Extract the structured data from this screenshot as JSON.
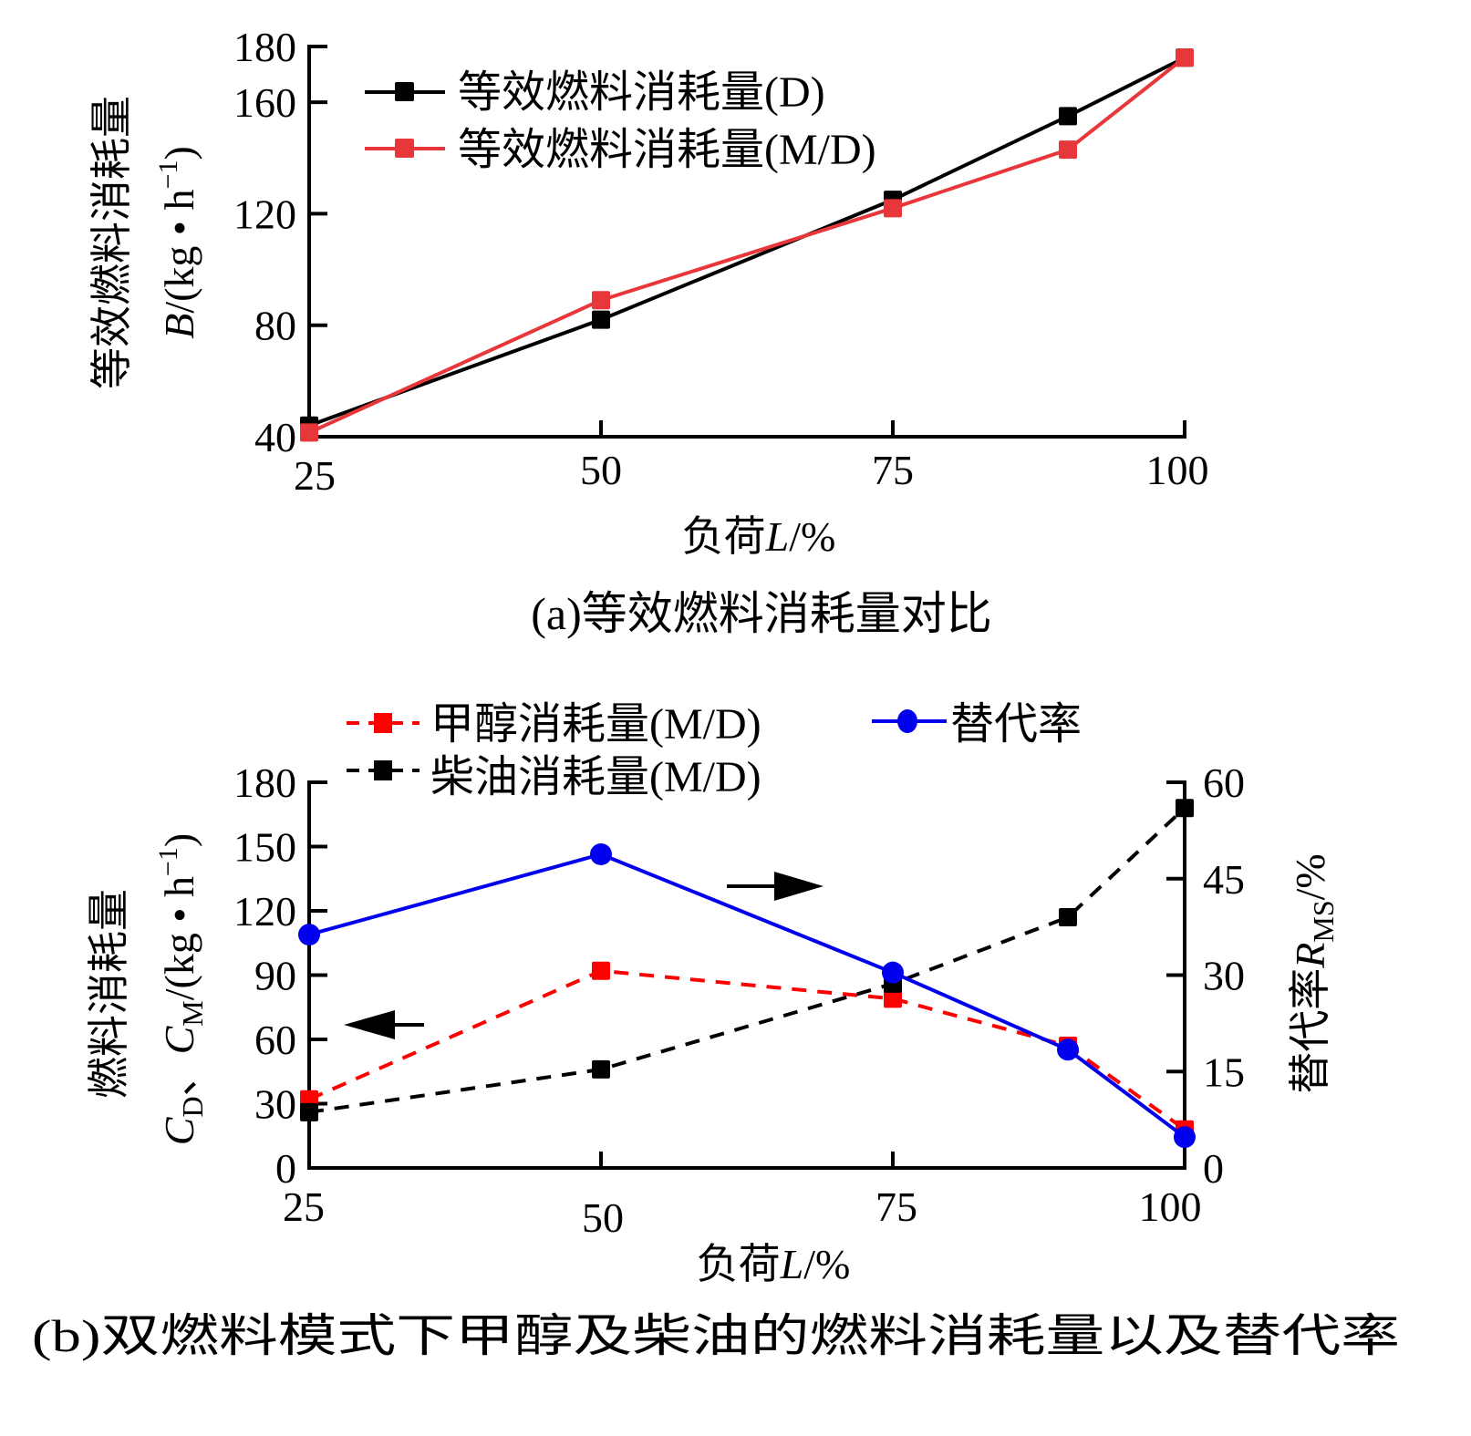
{
  "chart_data": [
    {
      "type": "line",
      "caption": "(a)等效燃料消耗量对比",
      "xlabel": "负荷",
      "xlabel_var": "L",
      "xlabel_unit": "/%",
      "ylabel_cn": "等效燃料消耗量",
      "ylabel_var": "B",
      "ylabel_unit": "/(kg • h",
      "ylabel_exp": "−1",
      "ylabel_close": ")",
      "xlim": [
        25,
        100
      ],
      "ylim": [
        40,
        180
      ],
      "xticks": [
        "25",
        "50",
        "75",
        "100"
      ],
      "xtick_values": [
        25,
        50,
        75,
        100
      ],
      "yticks": [
        "40",
        "80",
        "120",
        "160",
        "180"
      ],
      "ytick_values": [
        40,
        80,
        120,
        160,
        180
      ],
      "legend_position": "top-left",
      "x": [
        25,
        50,
        75,
        90,
        100
      ],
      "series": [
        {
          "name": "等效燃料消耗量(D)",
          "color": "#000000",
          "marker": "square",
          "dash": false,
          "values": [
            44,
            82,
            125,
            155,
            176
          ]
        },
        {
          "name": "等效燃料消耗量(M/D)",
          "color": "#e8373a",
          "marker": "square",
          "dash": false,
          "values": [
            41.5,
            89,
            122,
            143,
            176
          ]
        }
      ]
    },
    {
      "type": "line",
      "caption": "(b)双燃料模式下甲醇及柴油的燃料消耗量以及替代率",
      "xlabel": "负荷",
      "xlabel_var": "L",
      "xlabel_unit": "/%",
      "ylabel_cn": "燃料消耗量",
      "ylabel_var1": "C",
      "ylabel_sub1": "D",
      "ylabel_sep": "、",
      "ylabel_var2": "C",
      "ylabel_sub2": "M",
      "ylabel_unit": "/(kg • h",
      "ylabel_exp": "−1",
      "ylabel_close": ")",
      "y2label_cn": "替代率",
      "y2label_var": "R",
      "y2label_sub": "MS",
      "y2label_unit": "/%",
      "xlim": [
        25,
        100
      ],
      "ylim": [
        0,
        180
      ],
      "y2lim": [
        0,
        60
      ],
      "xticks": [
        "25",
        "50",
        "75",
        "100"
      ],
      "xtick_values": [
        25,
        50,
        75,
        100
      ],
      "yticks": [
        "0",
        "30",
        "60",
        "90",
        "120",
        "150",
        "180"
      ],
      "ytick_values": [
        0,
        30,
        60,
        90,
        120,
        150,
        180
      ],
      "y2ticks": [
        "0",
        "15",
        "30",
        "45",
        "60"
      ],
      "y2tick_values": [
        0,
        15,
        30,
        45,
        60
      ],
      "legend_position": "top",
      "x": [
        25,
        50,
        75,
        90,
        100
      ],
      "series": [
        {
          "name": "甲醇消耗量(M/D)",
          "color": "#ff0000",
          "marker": "square",
          "dash": true,
          "axis": "left",
          "values": [
            32,
            92,
            79,
            57,
            18
          ]
        },
        {
          "name": "柴油消耗量(M/D)",
          "color": "#000000",
          "marker": "square",
          "dash": true,
          "axis": "left",
          "values": [
            26,
            46,
            86,
            117,
            168
          ]
        },
        {
          "name": "替代率",
          "color": "#0000ee",
          "marker": "circle",
          "dash": false,
          "axis": "right",
          "values": [
            36.3,
            48.8,
            30.4,
            18.4,
            4.8
          ]
        }
      ],
      "annotations": [
        {
          "type": "arrow",
          "direction": "left",
          "meaning": "left-axis series"
        },
        {
          "type": "arrow",
          "direction": "right",
          "meaning": "right-axis series"
        }
      ]
    }
  ]
}
